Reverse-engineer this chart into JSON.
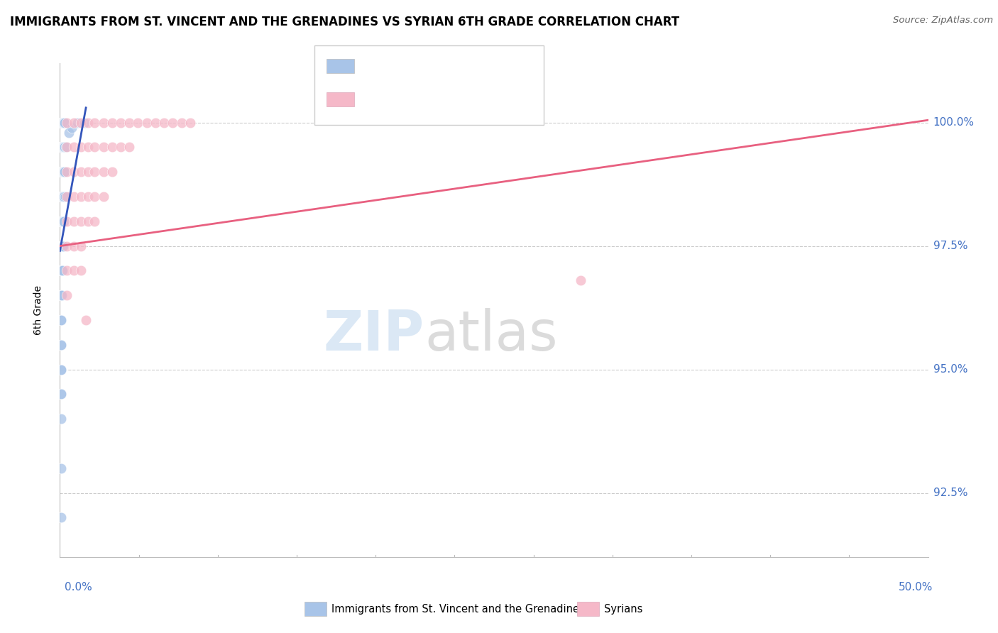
{
  "title": "IMMIGRANTS FROM ST. VINCENT AND THE GRENADINES VS SYRIAN 6TH GRADE CORRELATION CHART",
  "source": "Source: ZipAtlas.com",
  "ylabel": "6th Grade",
  "y_tick_labels": [
    "92.5%",
    "95.0%",
    "97.5%",
    "100.0%"
  ],
  "y_tick_values": [
    92.5,
    95.0,
    97.5,
    100.0
  ],
  "x_min": 0.0,
  "x_max": 50.0,
  "y_min": 91.2,
  "y_max": 101.2,
  "blue_color": "#a8c4e8",
  "pink_color": "#f5b8c8",
  "blue_line_color": "#3355bb",
  "pink_line_color": "#e86080",
  "blue_line_x0": 0.0,
  "blue_line_y0": 97.4,
  "blue_line_x1": 1.5,
  "blue_line_y1": 100.3,
  "pink_line_x0": 0.0,
  "pink_line_y0": 97.5,
  "pink_line_x1": 50.0,
  "pink_line_y1": 100.05,
  "blue_scatter_x": [
    0.05,
    0.08,
    0.1,
    0.12,
    0.15,
    0.18,
    0.2,
    0.22,
    0.25,
    0.28,
    0.05,
    0.08,
    0.1,
    0.12,
    0.15,
    0.18,
    0.2,
    0.22,
    0.25,
    0.28,
    0.05,
    0.08,
    0.1,
    0.12,
    0.15,
    0.18,
    0.2,
    0.22,
    0.25,
    0.28,
    0.05,
    0.08,
    0.1,
    0.15,
    0.2,
    0.25,
    0.3,
    0.05,
    0.08,
    0.1,
    0.15,
    0.2,
    0.25,
    0.05,
    0.08,
    0.1,
    0.15,
    0.2,
    0.05,
    0.08,
    0.1,
    0.15,
    0.05,
    0.08,
    0.1,
    0.05,
    0.08,
    0.05,
    0.08,
    0.05,
    0.08,
    0.05,
    0.08,
    0.05,
    0.05,
    0.05,
    0.35,
    0.5,
    0.7,
    1.0,
    1.4
  ],
  "blue_scatter_y": [
    100.0,
    100.0,
    100.0,
    100.0,
    100.0,
    100.0,
    100.0,
    100.0,
    100.0,
    100.0,
    99.5,
    99.5,
    99.5,
    99.5,
    99.5,
    99.5,
    99.5,
    99.5,
    99.5,
    99.5,
    99.0,
    99.0,
    99.0,
    99.0,
    99.0,
    99.0,
    99.0,
    99.0,
    99.0,
    99.0,
    98.5,
    98.5,
    98.5,
    98.5,
    98.5,
    98.5,
    98.5,
    98.0,
    98.0,
    98.0,
    98.0,
    98.0,
    98.0,
    97.5,
    97.5,
    97.5,
    97.5,
    97.5,
    97.0,
    97.0,
    97.0,
    97.0,
    96.5,
    96.5,
    96.5,
    96.0,
    96.0,
    95.5,
    95.5,
    95.0,
    95.0,
    94.5,
    94.5,
    94.0,
    93.0,
    92.0,
    99.5,
    99.8,
    99.9,
    100.0,
    100.0
  ],
  "pink_scatter_x": [
    0.4,
    0.8,
    1.2,
    1.6,
    2.0,
    2.5,
    3.0,
    3.5,
    4.0,
    4.5,
    5.0,
    5.5,
    6.0,
    6.5,
    7.0,
    7.5,
    0.4,
    0.8,
    1.2,
    1.6,
    2.0,
    2.5,
    3.0,
    3.5,
    4.0,
    0.4,
    0.8,
    1.2,
    1.6,
    2.0,
    2.5,
    3.0,
    0.4,
    0.8,
    1.2,
    1.6,
    2.0,
    2.5,
    0.4,
    0.8,
    1.2,
    1.6,
    2.0,
    0.4,
    0.8,
    1.2,
    0.4,
    0.8,
    1.2,
    0.4,
    1.5,
    30.0
  ],
  "pink_scatter_y": [
    100.0,
    100.0,
    100.0,
    100.0,
    100.0,
    100.0,
    100.0,
    100.0,
    100.0,
    100.0,
    100.0,
    100.0,
    100.0,
    100.0,
    100.0,
    100.0,
    99.5,
    99.5,
    99.5,
    99.5,
    99.5,
    99.5,
    99.5,
    99.5,
    99.5,
    99.0,
    99.0,
    99.0,
    99.0,
    99.0,
    99.0,
    99.0,
    98.5,
    98.5,
    98.5,
    98.5,
    98.5,
    98.5,
    98.0,
    98.0,
    98.0,
    98.0,
    98.0,
    97.5,
    97.5,
    97.5,
    97.0,
    97.0,
    97.0,
    96.5,
    96.0,
    96.8
  ]
}
